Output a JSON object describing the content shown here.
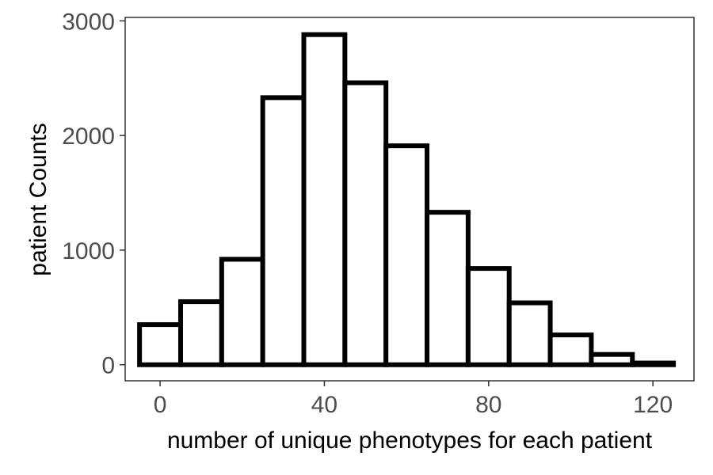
{
  "chart_data": {
    "type": "bar",
    "subtype": "histogram",
    "bin_width": 10,
    "bins": [
      {
        "center": 0,
        "count": 350
      },
      {
        "center": 10,
        "count": 550
      },
      {
        "center": 20,
        "count": 920
      },
      {
        "center": 30,
        "count": 2330
      },
      {
        "center": 40,
        "count": 2880
      },
      {
        "center": 50,
        "count": 2460
      },
      {
        "center": 60,
        "count": 1910
      },
      {
        "center": 70,
        "count": 1330
      },
      {
        "center": 80,
        "count": 840
      },
      {
        "center": 90,
        "count": 540
      },
      {
        "center": 100,
        "count": 260
      },
      {
        "center": 110,
        "count": 90
      },
      {
        "center": 120,
        "count": 15
      }
    ],
    "xlabel": "number of unique phenotypes for each patient",
    "ylabel": "patient Counts",
    "xlim": [
      -8.5,
      130
    ],
    "ylim": [
      -140,
      3030
    ],
    "xticks": [
      0,
      40,
      80,
      120
    ],
    "xtick_labels": [
      "0",
      "40",
      "80",
      "120"
    ],
    "yticks": [
      0,
      1000,
      2000,
      3000
    ],
    "ytick_labels": [
      "0",
      "1000",
      "2000",
      "3000"
    ],
    "grid": false,
    "legend": "none",
    "colors": {
      "bar_fill": "#ffffff",
      "bar_outline": "#000000",
      "panel_border": "#333333",
      "tick_text": "#4d4d4d"
    }
  }
}
